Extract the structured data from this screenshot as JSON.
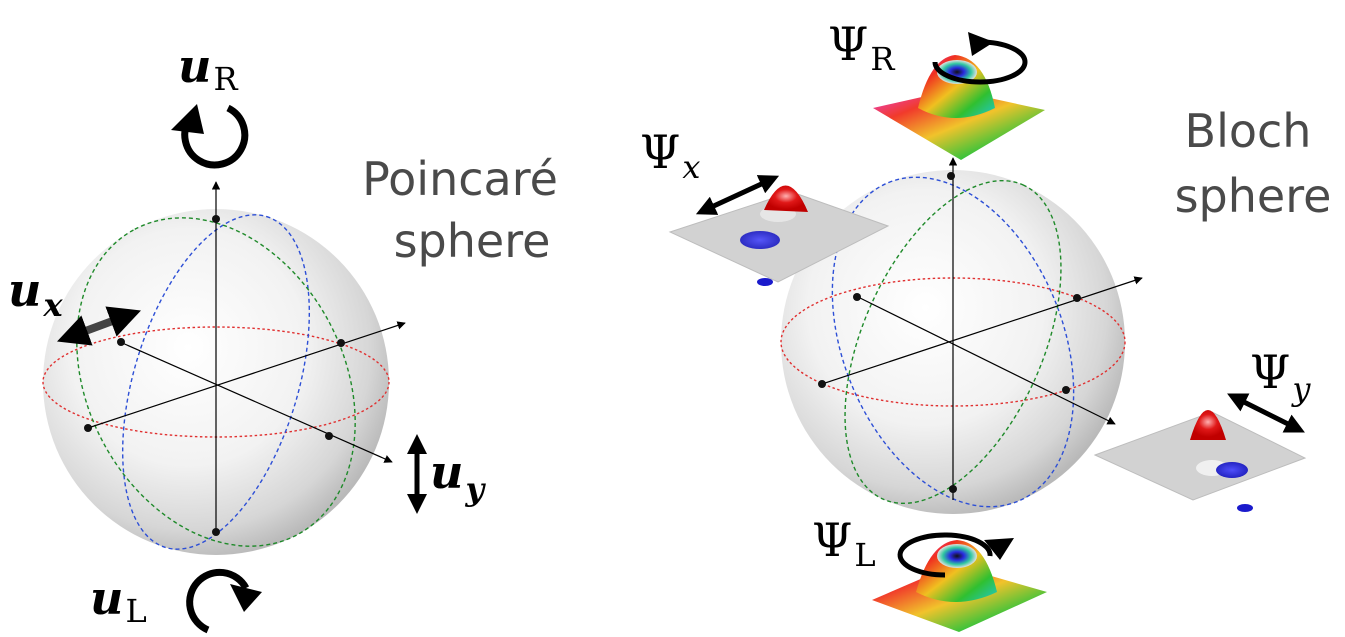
{
  "left_panel": {
    "title_line1": "Poincaré",
    "title_line2": "sphere",
    "labels": {
      "u_R": {
        "main": "u",
        "sub": "R"
      },
      "u_L": {
        "main": "u",
        "sub": "L"
      },
      "u_x": {
        "main": "u",
        "sub": "x"
      },
      "u_y": {
        "main": "u",
        "sub": "y"
      }
    }
  },
  "right_panel": {
    "title_line1": "Bloch",
    "title_line2": "sphere",
    "labels": {
      "psi_R": {
        "main": "Ψ",
        "sub": "R"
      },
      "psi_L": {
        "main": "Ψ",
        "sub": "L"
      },
      "psi_x": {
        "main": "Ψ",
        "sub": "x"
      },
      "psi_y": {
        "main": "Ψ",
        "sub": "y"
      }
    }
  },
  "colors": {
    "great_circle_blue": "#2d4fd6",
    "great_circle_green": "#1f8a2a",
    "equator_red": "#e03030",
    "axis": "#000000",
    "sphere_shade": "#cfcfcf",
    "caption": "#4a4a4a"
  },
  "icons": [
    "circular-arrow-clockwise-icon",
    "circular-arrow-counterclockwise-icon",
    "double-arrow-icon"
  ]
}
